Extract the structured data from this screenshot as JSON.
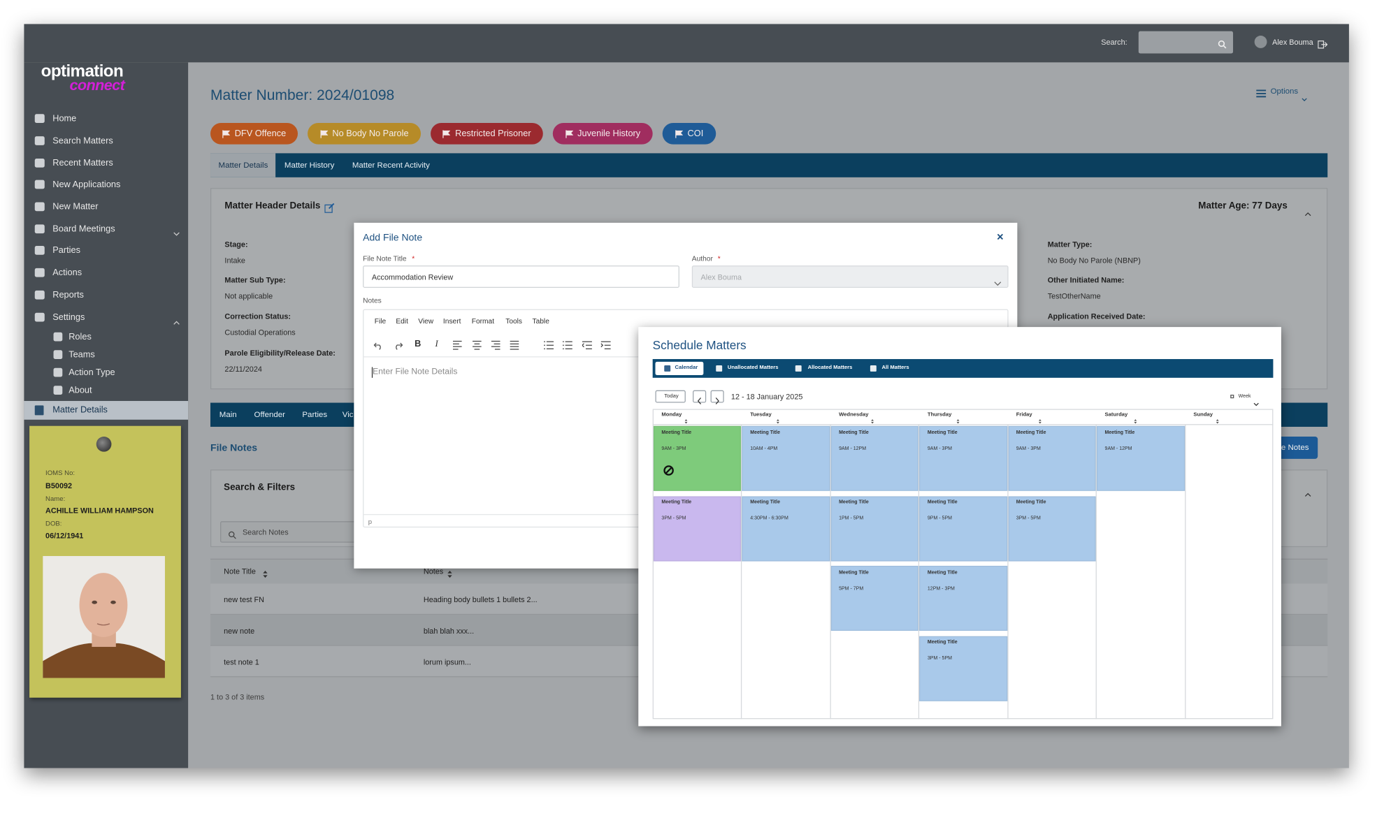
{
  "topbar": {
    "search_label": "Search:",
    "user": "Alex Bouma"
  },
  "brand": {
    "name": "optimation",
    "tagline": "connect"
  },
  "sidebar": {
    "items": [
      "Home",
      "Search Matters",
      "Recent Matters",
      "New Applications",
      "New Matter",
      "Board Meetings",
      "Parties",
      "Actions",
      "Reports",
      "Settings"
    ],
    "settings_items": [
      "Roles",
      "Teams",
      "Action Type",
      "About"
    ],
    "current": "Matter Details"
  },
  "offender": {
    "ioms_label": "IOMS No:",
    "ioms": "B50092",
    "name_label": "Name:",
    "name": "ACHILLE WILLIAM HAMPSON",
    "dob_label": "DOB:",
    "dob": "06/12/1941"
  },
  "matter": {
    "title": "Matter Number: 2024/01098",
    "options": "Options",
    "flags": [
      {
        "label": "DFV Offence",
        "color": "#b9561f"
      },
      {
        "label": "No Body No Parole",
        "color": "#b68b28"
      },
      {
        "label": "Restricted Prisoner",
        "color": "#9b2a2f"
      },
      {
        "label": "Juvenile History",
        "color": "#a02d5f"
      },
      {
        "label": "COI",
        "color": "#1f5b97"
      }
    ],
    "tabs": [
      "Matter Details",
      "Matter History",
      "Matter Recent Activity"
    ],
    "header": {
      "title": "Matter Header Details",
      "age": "Matter Age: 77 Days",
      "left_fields": [
        {
          "label": "Stage:",
          "value": "Intake"
        },
        {
          "label": "Matter Sub Type:",
          "value": "Not applicable"
        },
        {
          "label": "Correction Status:",
          "value": "Custodial Operations"
        },
        {
          "label": "Parole Eligibility/Release Date:",
          "value": "22/11/2024"
        }
      ],
      "right_fields": [
        {
          "label": "Matter Type:",
          "value": "No Body No Parole (NBNP)"
        },
        {
          "label": "Other Initiated Name:",
          "value": "TestOtherName"
        },
        {
          "label": "Application Received Date:"
        }
      ]
    },
    "section_tabs": [
      "Main",
      "Offender",
      "Parties",
      "Vic"
    ],
    "notes_button": "e Notes"
  },
  "file_notes": {
    "title": "File Notes",
    "filter_title": "Search & Filters",
    "search_placeholder": "Search Notes",
    "columns": [
      "Note Title",
      "Notes"
    ],
    "rows": [
      [
        "new test FN",
        "Heading body  bullets 1 bullets 2..."
      ],
      [
        "new note",
        "blah blah xxx..."
      ],
      [
        "test note 1",
        "lorum ipsum..."
      ]
    ],
    "footer": "1 to 3 of 3 items"
  },
  "file_note_dialog": {
    "title": "Add File Note",
    "close": "×",
    "required_mark": "*",
    "title_label": "File Note Title",
    "title_value": "Accommodation Review",
    "author_label": "Author",
    "author_value": "Alex Bouma",
    "notes_label": "Notes",
    "menu": [
      "File",
      "Edit",
      "View",
      "Insert",
      "Format",
      "Tools",
      "Table"
    ],
    "format_buttons": [
      "B",
      "I"
    ],
    "placeholder": "Enter File Note Details",
    "status": "p"
  },
  "schedule": {
    "title": "Schedule Matters",
    "nav": [
      "Calendar",
      "Unallocated Matters",
      "Allocated Matters",
      "All Matters"
    ],
    "today": "Today",
    "range": "12 - 18 January 2025",
    "view": "Week",
    "days": [
      {
        "label": "Monday",
        "events": [
          {
            "title": "Meeting Title",
            "time": "9AM - 3PM",
            "color": "#7ecb7b"
          },
          {
            "title": "Meeting Title",
            "time": "3PM - 5PM",
            "color": "#c9b8ee"
          }
        ]
      },
      {
        "label": "Tuesday",
        "events": [
          {
            "title": "Meeting Title",
            "time": "10AM - 4PM",
            "color": "#a9c9ea"
          },
          {
            "title": "Meeting Title",
            "time": "4:30PM - 6:30PM",
            "color": "#a9c9ea"
          }
        ]
      },
      {
        "label": "Wednesday",
        "events": [
          {
            "title": "Meeting Title",
            "time": "9AM - 12PM",
            "color": "#a9c9ea"
          },
          {
            "title": "Meeting Title",
            "time": "1PM - 5PM",
            "color": "#a9c9ea"
          },
          {
            "title": "Meeting Title",
            "time": "5PM - 7PM",
            "color": "#a9c9ea"
          }
        ]
      },
      {
        "label": "Thursday",
        "events": [
          {
            "title": "Meeting Title",
            "time": "9AM - 3PM",
            "color": "#a9c9ea"
          },
          {
            "title": "Meeting Title",
            "time": "9PM - 5PM",
            "color": "#a9c9ea"
          },
          {
            "title": "Meeting Title",
            "time": "12PM - 3PM",
            "color": "#a9c9ea"
          },
          {
            "title": "Meeting Title",
            "time": "3PM - 5PM",
            "color": "#a9c9ea"
          }
        ]
      },
      {
        "label": "Friday",
        "events": [
          {
            "title": "Meeting Title",
            "time": "9AM - 3PM",
            "color": "#a9c9ea"
          },
          {
            "title": "Meeting Title",
            "time": "3PM - 5PM",
            "color": "#a9c9ea"
          }
        ]
      },
      {
        "label": "Saturday",
        "events": [
          {
            "title": "Meeting Title",
            "time": "9AM - 12PM",
            "color": "#a9c9ea"
          }
        ]
      },
      {
        "label": "Sunday",
        "events": []
      }
    ]
  }
}
